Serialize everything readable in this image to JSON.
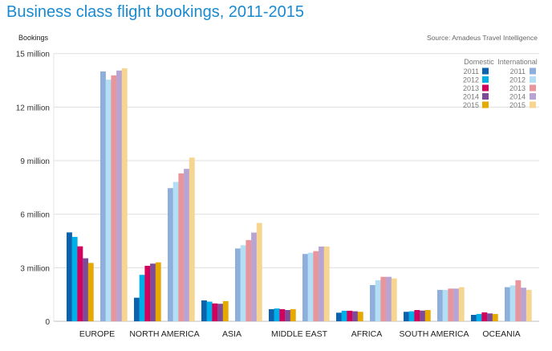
{
  "chart_data": {
    "type": "bar",
    "title": "Business class flight bookings, 2011-2015",
    "ylabel": "Bookings",
    "xlabel": "",
    "source": "Source: Amadeus Travel Intelligence",
    "ylim": [
      0,
      15000000
    ],
    "yticks": [
      0,
      3000000,
      6000000,
      9000000,
      12000000,
      15000000
    ],
    "ytick_labels": [
      "0",
      "3 million",
      "6 million",
      "9 million",
      "12 million",
      "15 million"
    ],
    "grid": true,
    "legend_position": "top-right",
    "legend_groups": [
      "Domestic",
      "International"
    ],
    "years": [
      "2011",
      "2012",
      "2013",
      "2014",
      "2015"
    ],
    "categories": [
      "EUROPE",
      "NORTH AMERICA",
      "ASIA",
      "MIDDLE EAST",
      "AFRICA",
      "SOUTH AMERICA",
      "OCEANIA"
    ],
    "units": "millions",
    "series": [
      {
        "name": "Domestic 2011",
        "group": "Domestic",
        "year": "2011",
        "color": "#0b62ae",
        "values": [
          4.98,
          1.32,
          1.17,
          0.68,
          0.48,
          0.53,
          0.36
        ]
      },
      {
        "name": "Domestic 2012",
        "group": "Domestic",
        "year": "2012",
        "color": "#00aee8",
        "values": [
          4.73,
          2.6,
          1.1,
          0.72,
          0.59,
          0.56,
          0.41
        ]
      },
      {
        "name": "Domestic 2013",
        "group": "Domestic",
        "year": "2013",
        "color": "#d4005c",
        "values": [
          4.2,
          3.11,
          1.0,
          0.68,
          0.59,
          0.63,
          0.5
        ]
      },
      {
        "name": "Domestic 2014",
        "group": "Domestic",
        "year": "2014",
        "color": "#7d4b98",
        "values": [
          3.53,
          3.23,
          0.98,
          0.63,
          0.56,
          0.6,
          0.44
        ]
      },
      {
        "name": "Domestic 2015",
        "group": "Domestic",
        "year": "2015",
        "color": "#e5a900",
        "values": [
          3.27,
          3.3,
          1.13,
          0.68,
          0.53,
          0.63,
          0.41
        ]
      },
      {
        "name": "International 2011",
        "group": "International",
        "year": "2011",
        "color": "#8eaedb",
        "values": [
          14.0,
          7.46,
          4.08,
          3.77,
          2.03,
          1.76,
          1.91
        ]
      },
      {
        "name": "International 2012",
        "group": "International",
        "year": "2012",
        "color": "#b3def4",
        "values": [
          13.54,
          7.81,
          4.26,
          3.84,
          2.3,
          1.76,
          2.01
        ]
      },
      {
        "name": "International 2013",
        "group": "International",
        "year": "2013",
        "color": "#e8959b",
        "values": [
          13.78,
          8.29,
          4.55,
          3.93,
          2.49,
          1.83,
          2.3
        ]
      },
      {
        "name": "International 2014",
        "group": "International",
        "year": "2014",
        "color": "#b8a4d2",
        "values": [
          14.05,
          8.54,
          4.97,
          4.19,
          2.49,
          1.83,
          1.88
        ]
      },
      {
        "name": "International 2015",
        "group": "International",
        "year": "2015",
        "color": "#f5d58f",
        "values": [
          14.17,
          9.17,
          5.51,
          4.19,
          2.4,
          1.91,
          1.76
        ]
      }
    ]
  }
}
